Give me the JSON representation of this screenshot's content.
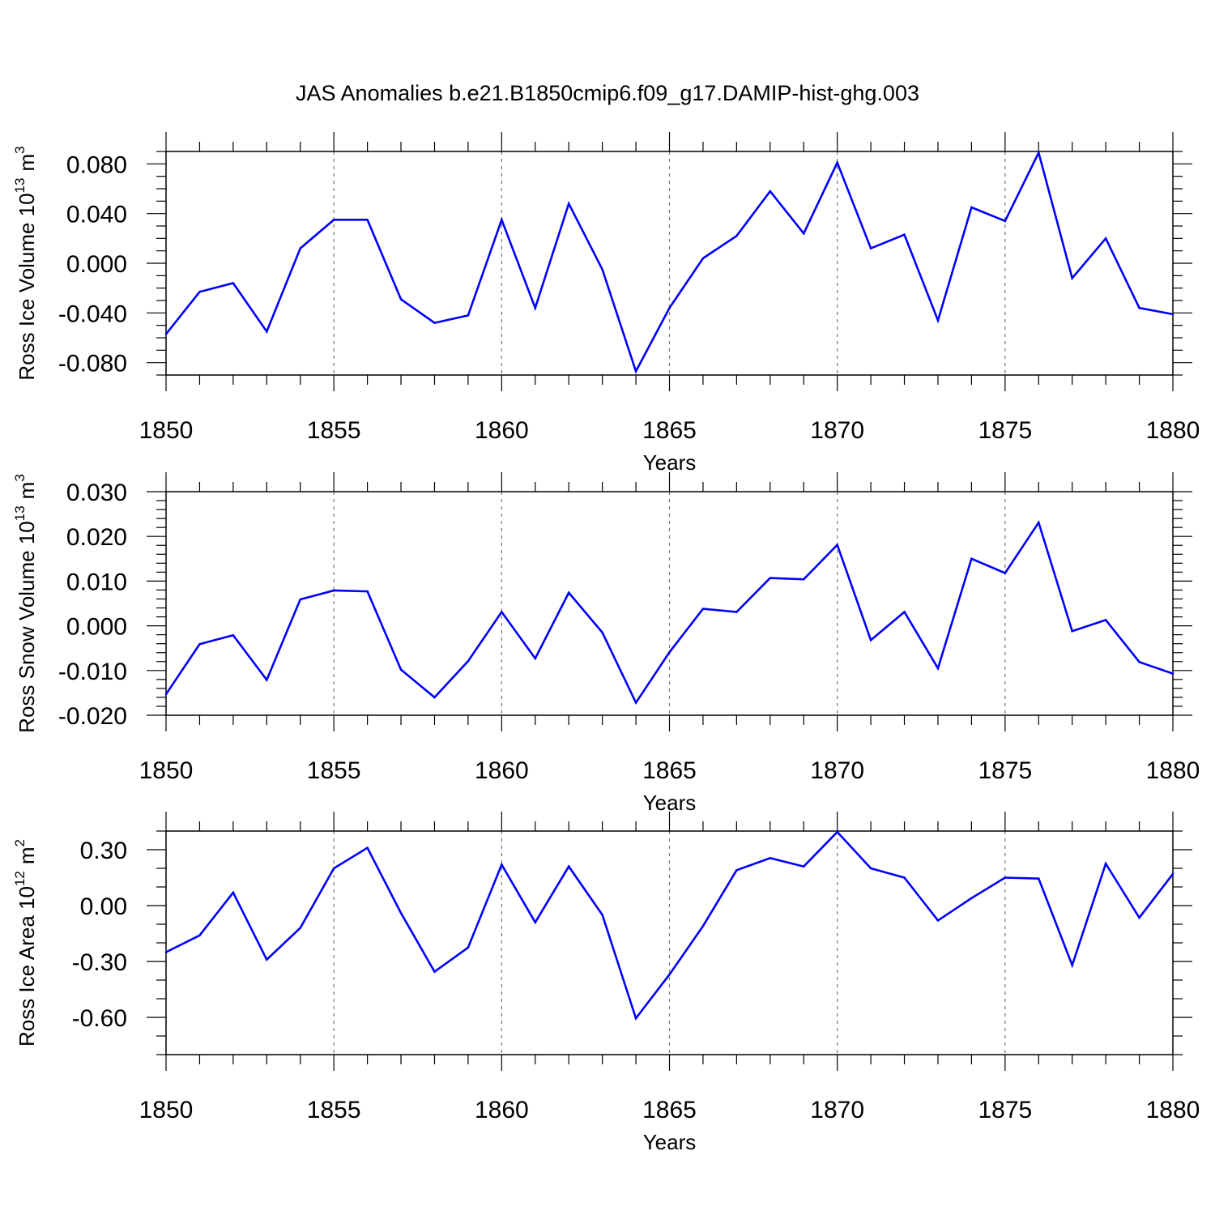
{
  "figure": {
    "title": "JAS Anomalies b.e21.B1850cmip6.f09_g17.DAMIP-hist-ghg.003"
  },
  "colors": {
    "series": "#0000ff",
    "frame": "#000000",
    "grid": "#777777",
    "background": "#ffffff"
  },
  "chart_data": [
    {
      "type": "line",
      "name": "ross-ice-volume",
      "ylabel": "Ross Ice Volume 10",
      "ylabel_exponent": "13",
      "ylabel_unit": "m",
      "ylabel_unit_exponent": "3",
      "xlabel": "Years",
      "xlim": [
        1850,
        1880
      ],
      "ylim": [
        -0.09,
        0.09
      ],
      "yticks": [
        -0.08,
        -0.04,
        0.0,
        0.04,
        0.08
      ],
      "ytick_labels": [
        "-0.080",
        "-0.040",
        "0.000",
        "0.040",
        "0.080"
      ],
      "yminor_step": 0.01,
      "xticks": [
        1850,
        1855,
        1860,
        1865,
        1870,
        1875,
        1880
      ],
      "xtick_labels": [
        "1850",
        "1855",
        "1860",
        "1865",
        "1870",
        "1875",
        "1880"
      ],
      "x": [
        1850,
        1851,
        1852,
        1853,
        1854,
        1855,
        1856,
        1857,
        1858,
        1859,
        1860,
        1861,
        1862,
        1863,
        1864,
        1865,
        1866,
        1867,
        1868,
        1869,
        1870,
        1871,
        1872,
        1873,
        1874,
        1875,
        1876,
        1877,
        1878,
        1879,
        1880
      ],
      "y": [
        -0.057,
        -0.023,
        -0.016,
        -0.055,
        0.012,
        0.035,
        0.035,
        -0.029,
        -0.048,
        -0.042,
        0.035,
        -0.036,
        0.048,
        -0.005,
        -0.087,
        -0.036,
        0.004,
        0.022,
        0.058,
        0.024,
        0.081,
        0.012,
        0.023,
        -0.046,
        0.045,
        0.034,
        0.089,
        -0.012,
        0.02,
        -0.036,
        -0.041
      ]
    },
    {
      "type": "line",
      "name": "ross-snow-volume",
      "ylabel": "Ross Snow Volume 10",
      "ylabel_exponent": "13",
      "ylabel_unit": "m",
      "ylabel_unit_exponent": "3",
      "xlabel": "Years",
      "xlim": [
        1850,
        1880
      ],
      "ylim": [
        -0.02,
        0.03
      ],
      "yticks": [
        -0.02,
        -0.01,
        0.0,
        0.01,
        0.02,
        0.03
      ],
      "ytick_labels": [
        "-0.020",
        "-0.010",
        "0.000",
        "0.010",
        "0.020",
        "0.030"
      ],
      "yminor_step": 0.002,
      "xticks": [
        1850,
        1855,
        1860,
        1865,
        1870,
        1875,
        1880
      ],
      "xtick_labels": [
        "1850",
        "1855",
        "1860",
        "1865",
        "1870",
        "1875",
        "1880"
      ],
      "x": [
        1850,
        1851,
        1852,
        1853,
        1854,
        1855,
        1856,
        1857,
        1858,
        1859,
        1860,
        1861,
        1862,
        1863,
        1864,
        1865,
        1866,
        1867,
        1868,
        1869,
        1870,
        1871,
        1872,
        1873,
        1874,
        1875,
        1876,
        1877,
        1878,
        1879,
        1880
      ],
      "y": [
        -0.0153,
        -0.0041,
        -0.0021,
        -0.0121,
        0.0059,
        0.0079,
        0.0077,
        -0.0098,
        -0.016,
        -0.0079,
        0.0031,
        -0.0073,
        0.0074,
        -0.0015,
        -0.0172,
        -0.0059,
        0.0038,
        0.0031,
        0.0107,
        0.0104,
        0.0181,
        -0.0032,
        0.0031,
        -0.0095,
        0.015,
        0.0118,
        0.0231,
        -0.0012,
        0.0013,
        -0.0081,
        -0.0107
      ]
    },
    {
      "type": "line",
      "name": "ross-ice-area",
      "ylabel": "Ross Ice Area 10",
      "ylabel_exponent": "12",
      "ylabel_unit": "m",
      "ylabel_unit_exponent": "2",
      "xlabel": "Years",
      "xlim": [
        1850,
        1880
      ],
      "ylim": [
        -0.8,
        0.4
      ],
      "yticks": [
        -0.6,
        -0.3,
        0.0,
        0.3
      ],
      "ytick_labels": [
        "-0.60",
        "-0.30",
        "0.00",
        "0.30"
      ],
      "yminor_step": 0.1,
      "xticks": [
        1850,
        1855,
        1860,
        1865,
        1870,
        1875,
        1880
      ],
      "xtick_labels": [
        "1850",
        "1855",
        "1860",
        "1865",
        "1870",
        "1875",
        "1880"
      ],
      "x": [
        1850,
        1851,
        1852,
        1853,
        1854,
        1855,
        1856,
        1857,
        1858,
        1859,
        1860,
        1861,
        1862,
        1863,
        1864,
        1865,
        1866,
        1867,
        1868,
        1869,
        1870,
        1871,
        1872,
        1873,
        1874,
        1875,
        1876,
        1877,
        1878,
        1879,
        1880
      ],
      "y": [
        -0.25,
        -0.16,
        0.07,
        -0.29,
        -0.12,
        0.2,
        0.31,
        -0.04,
        -0.355,
        -0.225,
        0.22,
        -0.09,
        0.21,
        -0.05,
        -0.605,
        -0.37,
        -0.11,
        0.19,
        0.255,
        0.21,
        0.395,
        0.2,
        0.15,
        -0.08,
        0.04,
        0.15,
        0.145,
        -0.32,
        0.225,
        -0.065,
        0.17
      ]
    }
  ]
}
